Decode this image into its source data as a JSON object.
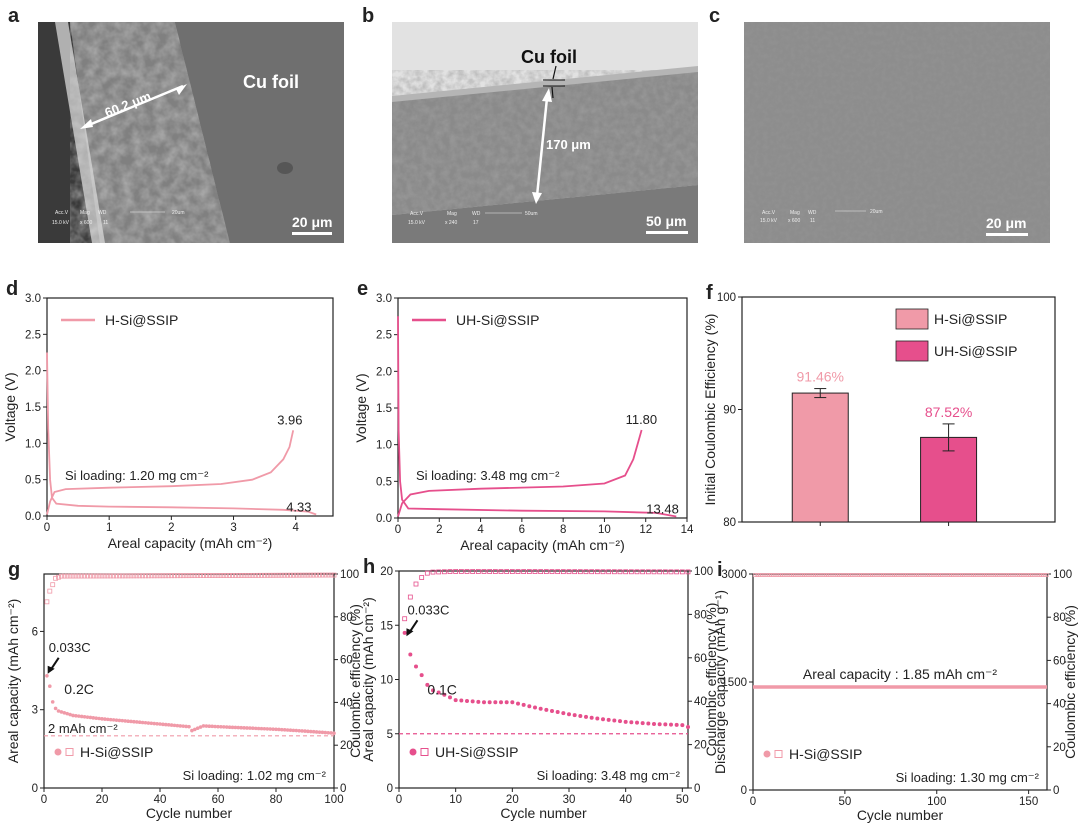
{
  "colors": {
    "light_pink": "#f09aa8",
    "dark_pink": "#e64f8c",
    "axis": "#222222"
  },
  "panels": {
    "a": {
      "label": "a",
      "annotation": "Cu foil",
      "measure": "60.2 μm",
      "scale": "20 μm",
      "meta": {
        "accv": "Acc.V",
        "mag": "Mag",
        "wd": "WD",
        "bar": "20um",
        "kv": "15.0 kV",
        "x": "x 600",
        "n": "11"
      }
    },
    "b": {
      "label": "b",
      "annotation": "Cu foil",
      "measure": "170 μm",
      "scale": "50 μm",
      "meta": {
        "accv": "Acc.V",
        "mag": "Mag",
        "wd": "WD",
        "bar": "50um",
        "kv": "15.0 kV",
        "x": "x 240",
        "n": "17"
      }
    },
    "c": {
      "label": "c",
      "scale": "20 μm",
      "meta": {
        "accv": "Acc.V",
        "mag": "Mag",
        "wd": "WD",
        "bar": "20um",
        "kv": "15.0 kV",
        "x": "x 600",
        "n": "11"
      }
    }
  },
  "chart_data": [
    {
      "id": "d",
      "label": "d",
      "type": "line",
      "xlabel": "Areal capacity (mAh cm⁻²)",
      "ylabel": "Voltage (V)",
      "xlim": [
        0,
        4.6
      ],
      "ylim": [
        0,
        3.0
      ],
      "xticks": [
        0,
        1,
        2,
        3,
        4
      ],
      "yticks": [
        0.0,
        0.5,
        1.0,
        1.5,
        2.0,
        2.5,
        3.0
      ],
      "legend": [
        "H-Si@SSIP"
      ],
      "annotation": "Si loading: 1.20 mg cm⁻²",
      "charge_end_label": "3.96",
      "discharge_end_label": "4.33",
      "discharge": [
        [
          0,
          2.25
        ],
        [
          0.02,
          1.2
        ],
        [
          0.05,
          0.5
        ],
        [
          0.08,
          0.25
        ],
        [
          0.15,
          0.17
        ],
        [
          0.5,
          0.14
        ],
        [
          1,
          0.13
        ],
        [
          2,
          0.12
        ],
        [
          3,
          0.105
        ],
        [
          3.8,
          0.085
        ],
        [
          4.2,
          0.06
        ],
        [
          4.33,
          0.02
        ]
      ],
      "charge": [
        [
          0,
          0.02
        ],
        [
          0.05,
          0.2
        ],
        [
          0.12,
          0.33
        ],
        [
          0.3,
          0.37
        ],
        [
          1,
          0.39
        ],
        [
          2,
          0.41
        ],
        [
          2.8,
          0.44
        ],
        [
          3.3,
          0.5
        ],
        [
          3.6,
          0.6
        ],
        [
          3.8,
          0.78
        ],
        [
          3.9,
          0.95
        ],
        [
          3.96,
          1.18
        ]
      ]
    },
    {
      "id": "e",
      "label": "e",
      "type": "line",
      "xlabel": "Areal capacity (mAh cm⁻²)",
      "ylabel": "Voltage (V)",
      "xlim": [
        0,
        14
      ],
      "ylim": [
        0,
        3.0
      ],
      "xticks": [
        0,
        2,
        4,
        6,
        8,
        10,
        12,
        14
      ],
      "yticks": [
        0.0,
        0.5,
        1.0,
        1.5,
        2.0,
        2.5,
        3.0
      ],
      "legend": [
        "UH-Si@SSIP"
      ],
      "annotation": "Si loading: 3.48 mg cm⁻²",
      "charge_end_label": "11.80",
      "discharge_end_label": "13.48",
      "discharge": [
        [
          0,
          2.75
        ],
        [
          0.03,
          1.2
        ],
        [
          0.1,
          0.5
        ],
        [
          0.2,
          0.25
        ],
        [
          0.5,
          0.13
        ],
        [
          2,
          0.12
        ],
        [
          6,
          0.1
        ],
        [
          10,
          0.09
        ],
        [
          12.5,
          0.07
        ],
        [
          13.48,
          0.02
        ]
      ],
      "charge": [
        [
          0,
          0.02
        ],
        [
          0.2,
          0.2
        ],
        [
          0.6,
          0.32
        ],
        [
          1.5,
          0.37
        ],
        [
          4,
          0.4
        ],
        [
          8,
          0.43
        ],
        [
          10,
          0.47
        ],
        [
          11,
          0.58
        ],
        [
          11.4,
          0.8
        ],
        [
          11.65,
          1.05
        ],
        [
          11.8,
          1.2
        ]
      ]
    },
    {
      "id": "f",
      "label": "f",
      "type": "bar",
      "categories": [
        "H-Si@SSIP",
        "UH-Si@SSIP"
      ],
      "values": [
        91.46,
        87.52
      ],
      "errors": [
        0.4,
        1.2
      ],
      "value_labels": [
        "91.46%",
        "87.52%"
      ],
      "ylabel": "Initial Coulombic Efficiency (%)",
      "ylim": [
        80,
        100
      ],
      "yticks": [
        80,
        90,
        100
      ],
      "legend": [
        "H-Si@SSIP",
        "UH-Si@SSIP"
      ]
    },
    {
      "id": "g",
      "label": "g",
      "type": "scatter",
      "xlabel": "Cycle number",
      "ylabel": "Areal capacity (mAh cm⁻²)",
      "y2label": "Coulombic efficiency (%)",
      "xlim": [
        0,
        100
      ],
      "ylim": [
        0,
        8.2
      ],
      "y2lim": [
        0,
        100
      ],
      "xticks": [
        0,
        20,
        40,
        60,
        80,
        100
      ],
      "yticks": [
        0,
        3,
        6
      ],
      "y2ticks": [
        0,
        20,
        40,
        60,
        80,
        100
      ],
      "legend": [
        "H-Si@SSIP"
      ],
      "rate_labels": [
        "0.033C",
        "0.2C"
      ],
      "ref_line_label": "2 mAh cm⁻²",
      "ref_line_value": 2.0,
      "loading": "Si loading: 1.02 mg cm⁻²",
      "capacity": [
        [
          1,
          4.3
        ],
        [
          2,
          3.9
        ],
        [
          3,
          3.3
        ],
        [
          4,
          3.05
        ],
        [
          5,
          2.95
        ],
        [
          10,
          2.78
        ],
        [
          20,
          2.65
        ],
        [
          30,
          2.55
        ],
        [
          40,
          2.45
        ],
        [
          50,
          2.35
        ],
        [
          51,
          2.2
        ],
        [
          55,
          2.38
        ],
        [
          60,
          2.35
        ],
        [
          70,
          2.3
        ],
        [
          80,
          2.25
        ],
        [
          90,
          2.18
        ],
        [
          100,
          2.1
        ]
      ],
      "efficiency": [
        [
          1,
          87
        ],
        [
          2,
          92
        ],
        [
          3,
          95
        ],
        [
          4,
          98
        ],
        [
          6,
          99
        ],
        [
          100,
          99.5
        ]
      ]
    },
    {
      "id": "h",
      "label": "h",
      "type": "scatter",
      "xlabel": "Cycle number",
      "ylabel": "Areal capacity (mAh cm⁻²)",
      "y2label": "Coulombic efficiency (%)",
      "xlim": [
        0,
        51
      ],
      "ylim": [
        0,
        20
      ],
      "y2lim": [
        0,
        100
      ],
      "xticks": [
        0,
        10,
        20,
        30,
        40,
        50
      ],
      "yticks": [
        0,
        5,
        10,
        15,
        20
      ],
      "y2ticks": [
        0,
        20,
        40,
        60,
        80,
        100
      ],
      "legend": [
        "UH-Si@SSIP"
      ],
      "rate_labels": [
        "0.033C",
        "0.1C"
      ],
      "ref_line_value": 5.0,
      "loading": "Si loading: 3.48 mg cm⁻²",
      "capacity": [
        [
          1,
          14.3
        ],
        [
          2,
          12.3
        ],
        [
          3,
          11.2
        ],
        [
          4,
          10.4
        ],
        [
          5,
          9.5
        ],
        [
          6,
          9.0
        ],
        [
          8,
          8.6
        ],
        [
          10,
          8.1
        ],
        [
          15,
          7.9
        ],
        [
          20,
          7.9
        ],
        [
          25,
          7.3
        ],
        [
          30,
          6.8
        ],
        [
          35,
          6.4
        ],
        [
          40,
          6.1
        ],
        [
          45,
          5.9
        ],
        [
          50,
          5.8
        ]
      ],
      "efficiency": [
        [
          1,
          78
        ],
        [
          2,
          88
        ],
        [
          3,
          94
        ],
        [
          4,
          97
        ],
        [
          5,
          99
        ],
        [
          6,
          99.5
        ],
        [
          10,
          99.8
        ],
        [
          50,
          99.6
        ]
      ]
    },
    {
      "id": "i",
      "label": "i",
      "type": "scatter",
      "xlabel": "Cycle number",
      "ylabel": "Discharge capacity (mAh g⁻¹)",
      "y2label": "Coulombic efficiency (%)",
      "xlim": [
        0,
        160
      ],
      "ylim": [
        0,
        3000
      ],
      "y2lim": [
        0,
        100
      ],
      "xticks": [
        0,
        50,
        100,
        150
      ],
      "yticks": [
        0,
        1500,
        3000
      ],
      "y2ticks": [
        0,
        20,
        40,
        60,
        80,
        100
      ],
      "legend": [
        "H-Si@SSIP"
      ],
      "annotation": "Areal capacity : 1.85 mAh cm⁻²",
      "loading": "Si loading: 1.30 mg cm⁻²",
      "capacity_value": 1430,
      "efficiency_value": 99.5
    }
  ]
}
